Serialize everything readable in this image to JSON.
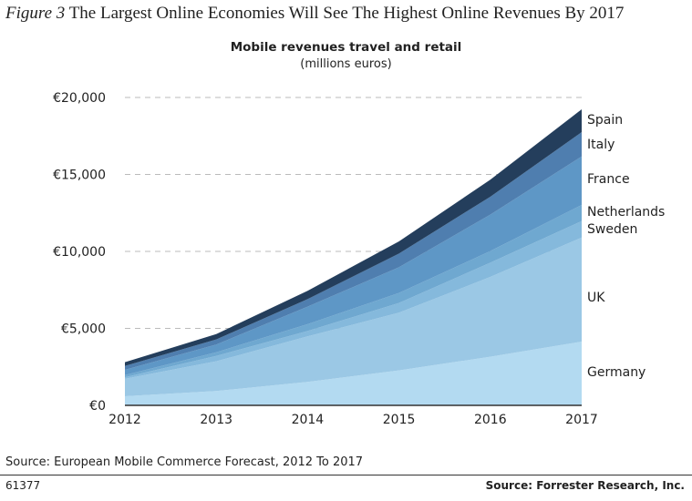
{
  "figure": {
    "label": "Figure 3",
    "title": "The Largest Online Economies Will See The Highest Online Revenues By 2017",
    "source": "Source: European Mobile Commerce Forecast, 2012 To 2017",
    "figure_number": "61377",
    "credit": "Source: Forrester Research, Inc."
  },
  "chart_data": {
    "type": "area",
    "stacked": true,
    "title": "Mobile revenues travel and retail",
    "subtitle": "(millions euros)",
    "x": [
      "2012",
      "2013",
      "2014",
      "2015",
      "2016",
      "2017"
    ],
    "ylim": [
      0,
      20000
    ],
    "yticks": [
      0,
      5000,
      10000,
      15000,
      20000
    ],
    "ytick_labels": [
      "€0",
      "€5,000",
      "€10,000",
      "€15,000",
      "€20,000"
    ],
    "grid": "horizontal dashed",
    "legend": "right, direct labels",
    "series": [
      {
        "name": "Germany",
        "color": "#b3daf1",
        "values": [
          590,
          930,
          1520,
          2270,
          3160,
          4140
        ]
      },
      {
        "name": "UK",
        "color": "#9bc8e5",
        "values": [
          1130,
          1930,
          2960,
          3750,
          5180,
          6760
        ]
      },
      {
        "name": "Sweden",
        "color": "#85b9dc",
        "values": [
          110,
          350,
          350,
          630,
          930,
          1070
        ]
      },
      {
        "name": "Netherlands",
        "color": "#6fa8d0",
        "values": [
          140,
          240,
          440,
          650,
          750,
          1050
        ]
      },
      {
        "name": "France",
        "color": "#5e97c6",
        "values": [
          340,
          500,
          1140,
          1670,
          2370,
          3150
        ]
      },
      {
        "name": "Italy",
        "color": "#4f7eaf",
        "values": [
          250,
          330,
          490,
          890,
          1160,
          1580
        ]
      },
      {
        "name": "Spain",
        "color": "#243e5c",
        "values": [
          240,
          350,
          540,
          790,
          1110,
          1480
        ]
      }
    ]
  }
}
